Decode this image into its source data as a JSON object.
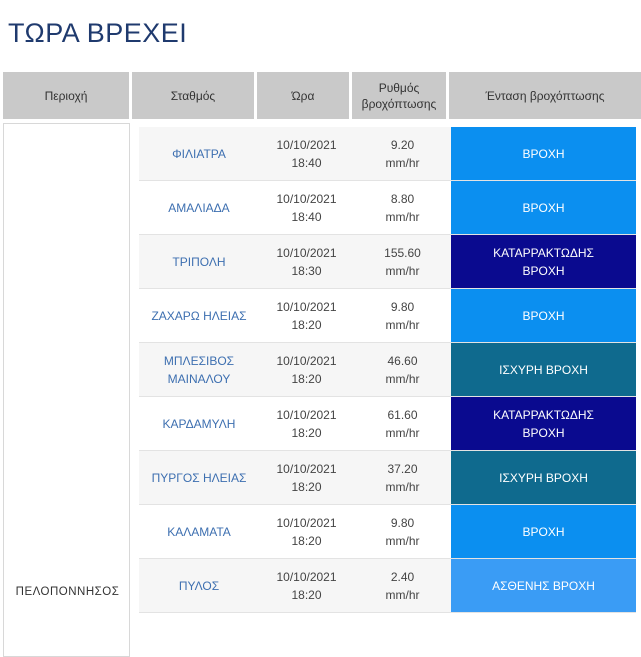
{
  "page": {
    "title": "ΤΩΡΑ ΒΡΕΧΕΙ"
  },
  "table": {
    "headers": {
      "region": "Περιοχή",
      "station": "Σταθμός",
      "time": "Ώρα",
      "rate": "Ρυθμός\nβροχόπτωσης",
      "intensity": "Ένταση βροχόπτωσης"
    },
    "region": "ΠΕΛΟΠΟΝΝΗΣΟΣ",
    "rows": [
      {
        "station": "ΦΙΛΙΑΤΡΑ",
        "date": "10/10/2021",
        "time": "18:40",
        "rate": "9.20",
        "unit": "mm/hr",
        "intensity": "ΒΡΟΧΗ",
        "color": "#0b8ff0"
      },
      {
        "station": "ΑΜΑΛΙΑΔΑ",
        "date": "10/10/2021",
        "time": "18:40",
        "rate": "8.80",
        "unit": "mm/hr",
        "intensity": "ΒΡΟΧΗ",
        "color": "#0b8ff0"
      },
      {
        "station": "ΤΡΙΠΟΛΗ",
        "date": "10/10/2021",
        "time": "18:30",
        "rate": "155.60",
        "unit": "mm/hr",
        "intensity": "ΚΑΤΑΡΡΑΚΤΩΔΗΣ\nΒΡΟΧΗ",
        "color": "#0a0a8f"
      },
      {
        "station": "ΖΑΧΑΡΩ ΗΛΕΙΑΣ",
        "date": "10/10/2021",
        "time": "18:20",
        "rate": "9.80",
        "unit": "mm/hr",
        "intensity": "ΒΡΟΧΗ",
        "color": "#0b8ff0"
      },
      {
        "station": "ΜΠΛΕΣΙΒΟΣ\nΜΑΙΝΑΛΟΥ",
        "date": "10/10/2021",
        "time": "18:20",
        "rate": "46.60",
        "unit": "mm/hr",
        "intensity": "ΙΣΧΥΡΗ ΒΡΟΧΗ",
        "color": "#0f6a8e"
      },
      {
        "station": "ΚΑΡΔΑΜΥΛΗ",
        "date": "10/10/2021",
        "time": "18:20",
        "rate": "61.60",
        "unit": "mm/hr",
        "intensity": "ΚΑΤΑΡΡΑΚΤΩΔΗΣ\nΒΡΟΧΗ",
        "color": "#0a0a8f"
      },
      {
        "station": "ΠΥΡΓΟΣ ΗΛΕΙΑΣ",
        "date": "10/10/2021",
        "time": "18:20",
        "rate": "37.20",
        "unit": "mm/hr",
        "intensity": "ΙΣΧΥΡΗ ΒΡΟΧΗ",
        "color": "#0f6a8e"
      },
      {
        "station": "ΚΑΛΑΜΑΤΑ",
        "date": "10/10/2021",
        "time": "18:20",
        "rate": "9.80",
        "unit": "mm/hr",
        "intensity": "ΒΡΟΧΗ",
        "color": "#0b8ff0"
      },
      {
        "station": "ΠΥΛΟΣ",
        "date": "10/10/2021",
        "time": "18:20",
        "rate": "2.40",
        "unit": "mm/hr",
        "intensity": "ΑΣΘΕΝΗΣ ΒΡΟΧΗ",
        "color": "#3a9cf5"
      }
    ]
  }
}
